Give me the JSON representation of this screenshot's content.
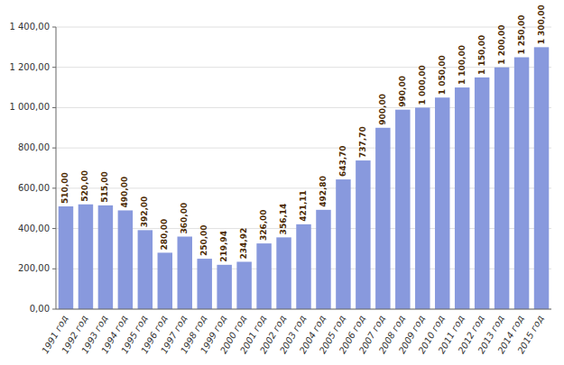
{
  "chart_data": {
    "type": "bar",
    "categories": [
      "1991 год",
      "1992 год",
      "1993 год",
      "1994 год",
      "1995 год",
      "1996 год",
      "1997 год",
      "1998 год",
      "1999 год",
      "2000 год",
      "2001 год",
      "2002 год",
      "2003 год",
      "2004 год",
      "2005 год",
      "2006 год",
      "2007 год",
      "2008 год",
      "2009 год",
      "2010 год",
      "2011 год",
      "2012 год",
      "2013 год",
      "2014 год",
      "2015 год"
    ],
    "values": [
      510.0,
      520.0,
      515.0,
      490.0,
      392.0,
      280.0,
      360.0,
      250.0,
      219.94,
      234.92,
      326.0,
      356.14,
      421.11,
      492.8,
      643.7,
      737.7,
      900.0,
      990.0,
      1000.0,
      1050.0,
      1100.0,
      1150.0,
      1200.0,
      1250.0,
      1300.0
    ],
    "value_labels": [
      "510,00",
      "520,00",
      "515,00",
      "490,00",
      "392,00",
      "280,00",
      "360,00",
      "250,00",
      "219,94",
      "234,92",
      "326,00",
      "356,14",
      "421,11",
      "492,80",
      "643,70",
      "737,70",
      "900,00",
      "990,00",
      "1 000,00",
      "1 050,00",
      "1 100,00",
      "1 150,00",
      "1 200,00",
      "1 250,00",
      "1 300,00"
    ],
    "color": "#8899dd",
    "data_labels": true,
    "ylim": [
      0,
      1400
    ],
    "yticks": [
      {
        "value": 0,
        "label": "0,00"
      },
      {
        "value": 200,
        "label": "200,00"
      },
      {
        "value": 400,
        "label": "400,00"
      },
      {
        "value": 600,
        "label": "600,00"
      },
      {
        "value": 800,
        "label": "800,00"
      },
      {
        "value": 1000,
        "label": "1 000,00"
      },
      {
        "value": 1200,
        "label": "1 200,00"
      },
      {
        "value": 1400,
        "label": "1 400,00"
      }
    ],
    "grid": true
  }
}
